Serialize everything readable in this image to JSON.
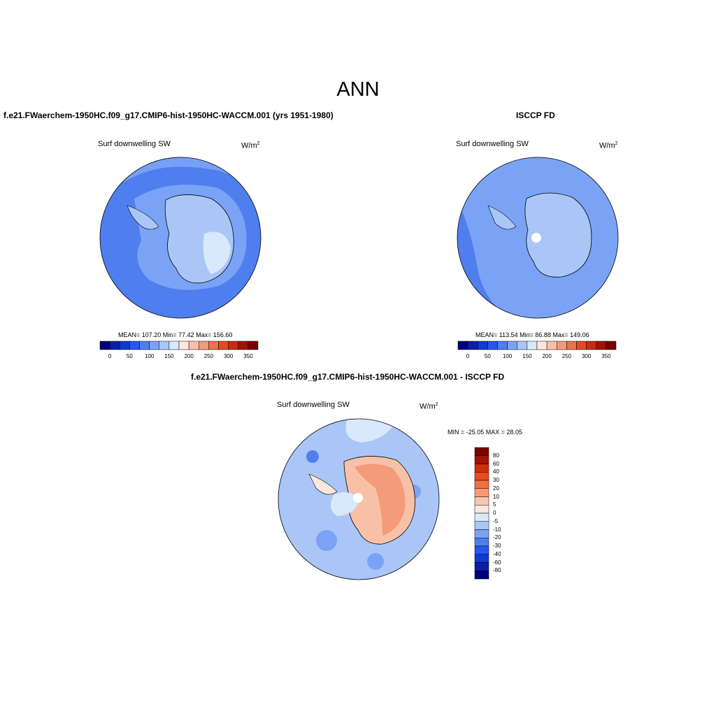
{
  "title": "ANN",
  "panels": [
    {
      "title": "f.e21.FWaerchem-1950HC.f09_g17.CMIP6-hist-1950HC-WACCM.001 (yrs 1951-1980)",
      "variable": "Surf downwelling SW",
      "units_base": "W/m",
      "units_exp": "2",
      "stats": "MEAN= 107.20  Min=  77.42  Max= 156.60"
    },
    {
      "title": "ISCCP FD",
      "variable": "Surf downwelling SW",
      "units_base": "W/m",
      "units_exp": "2",
      "stats": "MEAN= 113.54  Min=  86.88  Max= 149.06"
    },
    {
      "title": "f.e21.FWaerchem-1950HC.f09_g17.CMIP6-hist-1950HC-WACCM.001 - ISCCP FD",
      "variable": "Surf downwelling SW",
      "units_base": "W/m",
      "units_exp": "2",
      "stats": "MIN = -25.05 MAX =  28.05"
    }
  ],
  "colorbar_main": {
    "labels": [
      "0",
      "50",
      "100",
      "150",
      "200",
      "250",
      "300",
      "350"
    ],
    "colors": [
      "#00007f",
      "#0a1fa6",
      "#0d3ccc",
      "#2457f0",
      "#4f7fee",
      "#7ba3f5",
      "#a9c6f7",
      "#d8e9fb",
      "#fde6dc",
      "#f8c1a7",
      "#f49b7a",
      "#ee7148",
      "#e34a22",
      "#c62a12",
      "#a11207",
      "#7a0000"
    ]
  },
  "colorbar_diff": {
    "labels": [
      "80",
      "60",
      "40",
      "30",
      "20",
      "10",
      "5",
      "0",
      "-5",
      "-10",
      "-20",
      "-30",
      "-40",
      "-60",
      "-80"
    ],
    "colors": [
      "#7a0000",
      "#a11207",
      "#d02c14",
      "#ec4a1f",
      "#f37040",
      "#f79a74",
      "#fbc6ac",
      "#fde6dc",
      "#d8e9fb",
      "#a9c6f7",
      "#7ba3f5",
      "#4f7fee",
      "#2457f0",
      "#0d3ccc",
      "#0a1fa6",
      "#00007f"
    ]
  }
}
